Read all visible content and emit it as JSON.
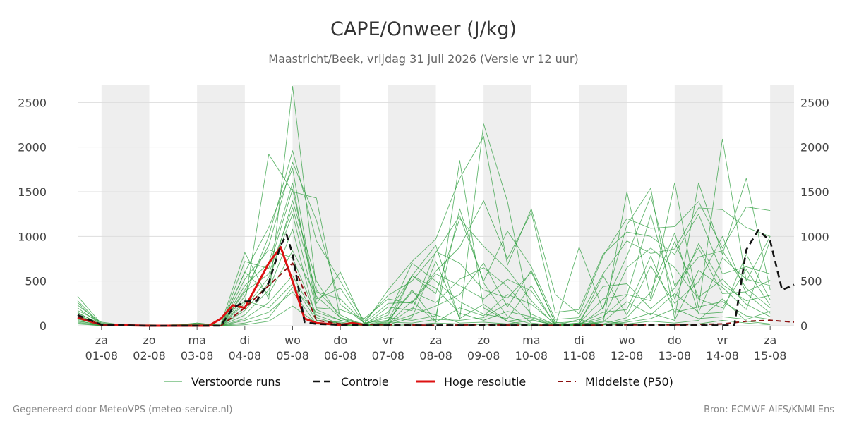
{
  "chart_data": {
    "type": "line",
    "title": "CAPE/Onweer (J/kg)",
    "subtitle": "Maastricht/Beek, vrijdag 31 juli 2026 (Versie vr 12 uur)",
    "xlabel": "",
    "ylabel": "",
    "ylim": [
      0,
      2700
    ],
    "y_ticks": [
      0,
      500,
      1000,
      1500,
      2000,
      2500
    ],
    "grid": true,
    "legend_position": "bottom",
    "x_range": [
      "2026-07-31 12:00",
      "2026-08-15 12:00"
    ],
    "x_ticks": [
      {
        "date": "2026-08-01",
        "day": "za",
        "label": "01-08"
      },
      {
        "date": "2026-08-02",
        "day": "zo",
        "label": "02-08"
      },
      {
        "date": "2026-08-03",
        "day": "ma",
        "label": "03-08"
      },
      {
        "date": "2026-08-04",
        "day": "di",
        "label": "04-08"
      },
      {
        "date": "2026-08-05",
        "day": "wo",
        "label": "05-08"
      },
      {
        "date": "2026-08-06",
        "day": "do",
        "label": "06-08"
      },
      {
        "date": "2026-08-07",
        "day": "vr",
        "label": "07-08"
      },
      {
        "date": "2026-08-08",
        "day": "za",
        "label": "08-08"
      },
      {
        "date": "2026-08-09",
        "day": "zo",
        "label": "09-08"
      },
      {
        "date": "2026-08-10",
        "day": "ma",
        "label": "10-08"
      },
      {
        "date": "2026-08-11",
        "day": "di",
        "label": "11-08"
      },
      {
        "date": "2026-08-12",
        "day": "wo",
        "label": "12-08"
      },
      {
        "date": "2026-08-13",
        "day": "do",
        "label": "13-08"
      },
      {
        "date": "2026-08-14",
        "day": "vr",
        "label": "14-08"
      },
      {
        "date": "2026-08-15",
        "day": "za",
        "label": "15-08"
      }
    ],
    "shaded_days": [
      "2026-08-01",
      "2026-08-03",
      "2026-08-05",
      "2026-08-07",
      "2026-08-09",
      "2026-08-11",
      "2026-08-13",
      "2026-08-15"
    ],
    "colors": {
      "perturbed": "#2e9e3e",
      "control": "#111111",
      "high_res": "#dd1111",
      "median": "#8b1010",
      "shade": "#eeeeee",
      "grid": "#dddddd"
    },
    "series": [
      {
        "name": "Controle",
        "style": "dashed",
        "x": [
          "2026-07-31 12:00",
          "2026-08-01 00:00",
          "2026-08-01 12:00",
          "2026-08-02 00:00",
          "2026-08-02 12:00",
          "2026-08-03 00:00",
          "2026-08-03 12:00",
          "2026-08-03 18:00",
          "2026-08-04 00:00",
          "2026-08-04 06:00",
          "2026-08-04 12:00",
          "2026-08-04 18:00",
          "2026-08-04 21:00",
          "2026-08-05 00:00",
          "2026-08-05 06:00",
          "2026-08-05 12:00",
          "2026-08-06 00:00",
          "2026-08-06 12:00",
          "2026-08-07 00:00",
          "2026-08-08 00:00",
          "2026-08-09 00:00",
          "2026-08-10 00:00",
          "2026-08-11 00:00",
          "2026-08-12 00:00",
          "2026-08-13 00:00",
          "2026-08-14 00:00",
          "2026-08-14 06:00",
          "2026-08-14 12:00",
          "2026-08-14 18:00",
          "2026-08-15 00:00",
          "2026-08-15 06:00",
          "2026-08-15 12:00"
        ],
        "values": [
          120,
          10,
          5,
          0,
          0,
          0,
          0,
          200,
          270,
          280,
          480,
          900,
          1020,
          800,
          40,
          20,
          10,
          5,
          5,
          5,
          5,
          5,
          5,
          5,
          5,
          5,
          5,
          850,
          1070,
          950,
          400,
          460
        ]
      },
      {
        "name": "Hoge resolutie",
        "style": "solid",
        "x": [
          "2026-07-31 12:00",
          "2026-08-01 00:00",
          "2026-08-01 12:00",
          "2026-08-02 00:00",
          "2026-08-02 12:00",
          "2026-08-03 00:00",
          "2026-08-03 06:00",
          "2026-08-03 12:00",
          "2026-08-03 18:00",
          "2026-08-04 00:00",
          "2026-08-04 06:00",
          "2026-08-04 12:00",
          "2026-08-04 18:00",
          "2026-08-05 00:00",
          "2026-08-05 06:00",
          "2026-08-05 12:00",
          "2026-08-06 00:00",
          "2026-08-06 06:00",
          "2026-08-06 12:00"
        ],
        "values": [
          90,
          10,
          5,
          0,
          0,
          0,
          0,
          80,
          230,
          200,
          450,
          700,
          880,
          500,
          80,
          30,
          10,
          30,
          10
        ]
      },
      {
        "name": "Middelste (P50)",
        "style": "dashed",
        "x": [
          "2026-07-31 12:00",
          "2026-08-01 00:00",
          "2026-08-01 12:00",
          "2026-08-02 00:00",
          "2026-08-03 00:00",
          "2026-08-03 12:00",
          "2026-08-04 00:00",
          "2026-08-04 12:00",
          "2026-08-05 00:00",
          "2026-08-05 12:00",
          "2026-08-06 00:00",
          "2026-08-07 00:00",
          "2026-08-08 00:00",
          "2026-08-09 00:00",
          "2026-08-10 00:00",
          "2026-08-11 00:00",
          "2026-08-12 00:00",
          "2026-08-13 00:00",
          "2026-08-14 00:00",
          "2026-08-14 12:00",
          "2026-08-15 00:00",
          "2026-08-15 12:00"
        ],
        "values": [
          100,
          10,
          5,
          0,
          0,
          0,
          200,
          450,
          700,
          60,
          20,
          10,
          5,
          10,
          5,
          5,
          10,
          10,
          20,
          50,
          60,
          40
        ]
      },
      {
        "name": "Verstoorde runs",
        "style": "thin",
        "x_start": "2026-07-31 12:00",
        "x_step_hours": 12,
        "members": [
          [
            330,
            20,
            0,
            0,
            0,
            0,
            20,
            820,
            300,
            2680,
            400,
            120,
            0,
            50,
            400,
            50,
            1850,
            200,
            50,
            0,
            10,
            30,
            20,
            1500,
            300,
            1600,
            200,
            2090,
            500,
            1000
          ],
          [
            280,
            10,
            5,
            0,
            10,
            5,
            0,
            250,
            1920,
            1500,
            1430,
            80,
            10,
            60,
            560,
            900,
            70,
            2260,
            1390,
            70,
            0,
            880,
            180,
            1130,
            1540,
            80,
            1600,
            800,
            1650,
            400
          ],
          [
            260,
            0,
            0,
            10,
            5,
            0,
            10,
            600,
            1100,
            1760,
            250,
            600,
            20,
            400,
            720,
            970,
            1650,
            2120,
            680,
            1310,
            350,
            130,
            780,
            1200,
            1090,
            1110,
            1390,
            870,
            1330,
            1290
          ],
          [
            230,
            30,
            0,
            0,
            5,
            30,
            0,
            400,
            900,
            1830,
            1180,
            240,
            30,
            250,
            260,
            610,
            880,
            1400,
            750,
            1270,
            150,
            180,
            800,
            1050,
            1000,
            800,
            1250,
            580,
            660,
            580
          ],
          [
            200,
            10,
            0,
            0,
            0,
            0,
            0,
            330,
            1000,
            1960,
            950,
            500,
            50,
            340,
            500,
            820,
            1230,
            500,
            1060,
            660,
            70,
            90,
            580,
            950,
            810,
            860,
            1320,
            1300,
            1100,
            1000
          ],
          [
            170,
            40,
            5,
            0,
            0,
            20,
            0,
            720,
            640,
            1530,
            300,
            420,
            20,
            150,
            560,
            360,
            1200,
            890,
            630,
            280,
            5,
            0,
            200,
            780,
            1450,
            450,
            770,
            840,
            420,
            200
          ],
          [
            150,
            0,
            0,
            5,
            0,
            10,
            0,
            450,
            700,
            1600,
            200,
            180,
            80,
            300,
            250,
            580,
            450,
            300,
            520,
            390,
            20,
            20,
            100,
            340,
            1240,
            300,
            920,
            460,
            280,
            340
          ],
          [
            140,
            20,
            0,
            0,
            5,
            0,
            0,
            200,
            540,
            1250,
            180,
            60,
            5,
            210,
            170,
            830,
            700,
            400,
            310,
            600,
            40,
            0,
            80,
            650,
            870,
            650,
            300,
            200,
            630,
            230
          ],
          [
            120,
            10,
            0,
            0,
            0,
            30,
            0,
            380,
            580,
            1320,
            380,
            300,
            30,
            60,
            380,
            260,
            520,
            650,
            440,
            130,
            10,
            10,
            560,
            120,
            670,
            250,
            490,
            1000,
            360,
            140
          ],
          [
            110,
            5,
            0,
            0,
            0,
            0,
            0,
            170,
            480,
            1400,
            500,
            80,
            10,
            120,
            700,
            500,
            270,
            130,
            80,
            450,
            5,
            30,
            300,
            350,
            280,
            940,
            320,
            520,
            240,
            100
          ],
          [
            90,
            0,
            0,
            0,
            0,
            0,
            0,
            520,
            850,
            760,
            120,
            20,
            0,
            30,
            120,
            220,
            350,
            700,
            210,
            620,
            30,
            50,
            440,
            470,
            190,
            420,
            870,
            360,
            380,
            510
          ],
          [
            80,
            0,
            0,
            0,
            0,
            0,
            0,
            120,
            400,
            1080,
            60,
            40,
            5,
            5,
            560,
            420,
            140,
            60,
            160,
            100,
            10,
            20,
            150,
            180,
            780,
            150,
            210,
            270,
            110,
            70
          ],
          [
            70,
            20,
            5,
            0,
            10,
            15,
            0,
            600,
            350,
            840,
            330,
            90,
            20,
            90,
            60,
            110,
            1310,
            480,
            100,
            20,
            0,
            0,
            40,
            270,
            120,
            360,
            150,
            760,
            520,
            450
          ],
          [
            60,
            0,
            0,
            0,
            0,
            0,
            0,
            80,
            260,
            560,
            90,
            10,
            0,
            20,
            280,
            40,
            200,
            110,
            350,
            240,
            20,
            10,
            20,
            90,
            380,
            1040,
            130,
            150,
            800,
            290
          ],
          [
            50,
            10,
            0,
            0,
            0,
            0,
            0,
            280,
            200,
            470,
            60,
            30,
            10,
            10,
            90,
            720,
            80,
            240,
            50,
            90,
            0,
            70,
            10,
            60,
            140,
            60,
            620,
            430,
            180,
            960
          ],
          [
            40,
            0,
            0,
            0,
            0,
            0,
            0,
            60,
            150,
            380,
            20,
            5,
            0,
            40,
            30,
            70,
            60,
            90,
            250,
            30,
            5,
            0,
            10,
            40,
            80,
            190,
            80,
            100,
            70,
            160
          ],
          [
            30,
            0,
            0,
            0,
            0,
            0,
            0,
            30,
            90,
            430,
            150,
            60,
            5,
            15,
            200,
            120,
            30,
            40,
            20,
            60,
            10,
            5,
            50,
            20,
            50,
            30,
            60,
            300,
            50,
            20
          ],
          [
            20,
            0,
            0,
            0,
            0,
            0,
            0,
            10,
            50,
            220,
            30,
            0,
            0,
            5,
            10,
            30,
            20,
            10,
            10,
            10,
            0,
            0,
            10,
            10,
            20,
            10,
            20,
            60,
            30,
            10
          ]
        ]
      }
    ],
    "legend": [
      {
        "key": "perturbed",
        "label": "Verstoorde runs"
      },
      {
        "key": "control",
        "label": "Controle"
      },
      {
        "key": "high_res",
        "label": "Hoge resolutie"
      },
      {
        "key": "median",
        "label": "Middelste (P50)"
      }
    ]
  },
  "footer": {
    "left": "Gegenereerd door MeteoVPS (meteo-service.nl)",
    "right": "Bron: ECMWF AIFS/KNMI Ens"
  }
}
